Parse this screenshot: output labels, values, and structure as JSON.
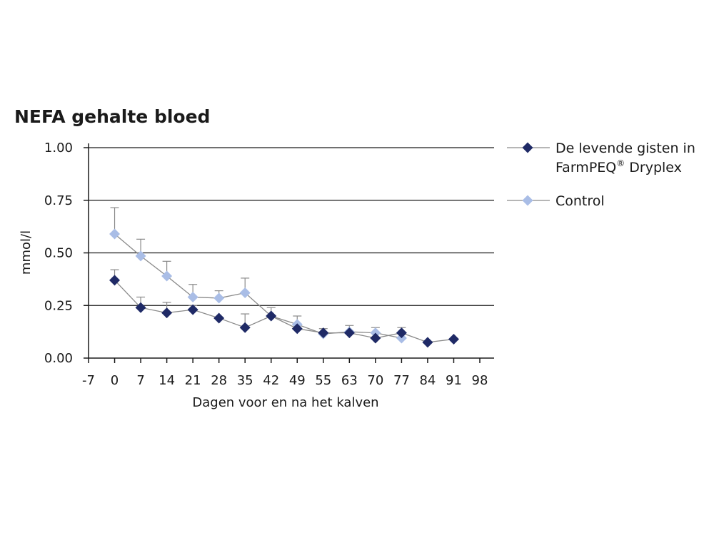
{
  "chart_data": {
    "type": "line",
    "title": "NEFA gehalte bloed",
    "xlabel": "Dagen voor en na het kalven",
    "ylabel": "mmol/l",
    "xlim": [
      -7,
      98
    ],
    "ylim": [
      0,
      1
    ],
    "x_ticks": [
      "-7",
      "0",
      "7",
      "14",
      "21",
      "28",
      "35",
      "42",
      "49",
      "55",
      "63",
      "70",
      "77",
      "84",
      "91",
      "98"
    ],
    "y_ticks": [
      "0.00",
      "0.25",
      "0.50",
      "0.75",
      "1.00"
    ],
    "y_tick_values": [
      0,
      0.25,
      0.5,
      0.75,
      1.0
    ],
    "grid": "horizontal",
    "legend_position": "right",
    "series": [
      {
        "name": "De levende gisten in FarmPEQ® Dryplex",
        "legend_line1": "De levende gisten in",
        "legend_line2_main": "FarmPEQ",
        "legend_line2_sup": "®",
        "legend_line2_rest": " Dryplex",
        "color": "#1f2a66",
        "x_index": [
          1,
          2,
          3,
          4,
          5,
          6,
          7,
          8,
          9,
          10,
          11,
          12,
          13,
          14
        ],
        "values": [
          0.37,
          0.24,
          0.215,
          0.23,
          0.19,
          0.145,
          0.2,
          0.14,
          0.12,
          0.12,
          0.095,
          0.12,
          0.075,
          0.09
        ],
        "error": [
          0.05,
          0.05,
          0.05,
          0.02,
          0.0,
          0.065,
          0.0,
          0.0,
          0.0,
          0.0,
          0.0,
          0.0,
          0.0,
          0.0
        ]
      },
      {
        "name": "Control",
        "legend_line1": "Control",
        "color": "#a9bde6",
        "x_index": [
          1,
          2,
          3,
          4,
          5,
          6,
          7,
          8,
          9,
          10,
          11,
          12
        ],
        "values": [
          0.59,
          0.485,
          0.39,
          0.29,
          0.285,
          0.31,
          0.2,
          0.16,
          0.115,
          0.125,
          0.12,
          0.095
        ],
        "error": [
          0.125,
          0.08,
          0.07,
          0.06,
          0.035,
          0.07,
          0.04,
          0.04,
          0.025,
          0.03,
          0.025,
          0.05
        ]
      }
    ]
  }
}
